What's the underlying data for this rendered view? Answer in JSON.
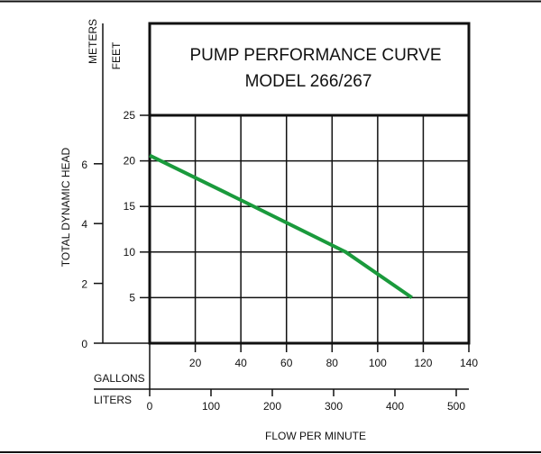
{
  "chart_data": {
    "type": "line",
    "title": "PUMP PERFORMANCE CURVE",
    "subtitle": "MODEL 266/267",
    "xlabel": "FLOW PER MINUTE",
    "ylabel": "TOTAL DYNAMIC HEAD",
    "x_primary": {
      "unit": "GALLONS",
      "range": [
        0,
        140
      ],
      "ticks": [
        20,
        40,
        60,
        80,
        100,
        120,
        140
      ]
    },
    "x_secondary": {
      "unit": "LITERS",
      "range": [
        0,
        530
      ],
      "ticks": [
        0,
        100,
        200,
        300,
        400,
        500
      ]
    },
    "y_primary": {
      "unit": "FEET",
      "range": [
        0,
        25
      ],
      "ticks": [
        5,
        10,
        15,
        20,
        25
      ]
    },
    "y_secondary": {
      "unit": "METERS",
      "ticks": [
        0,
        2,
        4,
        6
      ]
    },
    "grid": true,
    "series": [
      {
        "name": "Model 266/267",
        "color": "#1a9a3c",
        "x": [
          0,
          40,
          86,
          115
        ],
        "y": [
          20.6,
          15.7,
          10,
          5
        ]
      }
    ]
  }
}
